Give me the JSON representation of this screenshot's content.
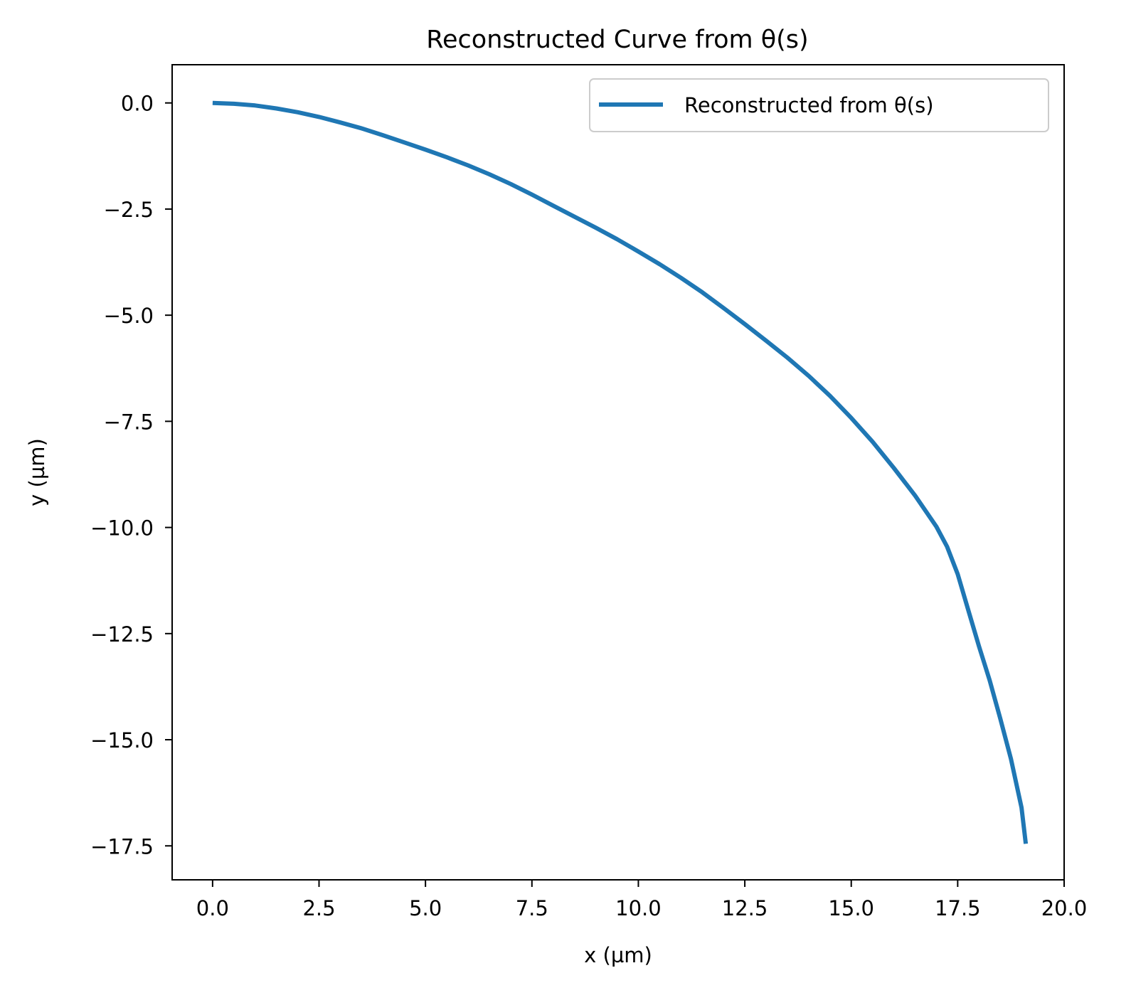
{
  "chart_data": {
    "type": "line",
    "title": "Reconstructed Curve from θ(s)",
    "xlabel": "x (µm)",
    "ylabel": "y (µm)",
    "xlim": [
      -0.95,
      20.0
    ],
    "ylim": [
      -18.3,
      0.9
    ],
    "grid": false,
    "legend_position": "upper right",
    "xticks": [
      0.0,
      2.5,
      5.0,
      7.5,
      10.0,
      12.5,
      15.0,
      17.5,
      20.0
    ],
    "xtick_labels": [
      "0.0",
      "2.5",
      "5.0",
      "7.5",
      "10.0",
      "12.5",
      "15.0",
      "17.5",
      "20.0"
    ],
    "yticks": [
      0.0,
      -2.5,
      -5.0,
      -7.5,
      -10.0,
      -12.5,
      -15.0,
      -17.5
    ],
    "ytick_labels": [
      "0.0",
      "−2.5",
      "−5.0",
      "−7.5",
      "−10.0",
      "−12.5",
      "−15.0",
      "−17.5"
    ],
    "series": [
      {
        "name": "Reconstructed from θ(s)",
        "color": "#1f77b4",
        "x": [
          0.0,
          0.5,
          1.0,
          1.5,
          2.0,
          2.5,
          3.0,
          3.5,
          4.0,
          4.5,
          5.0,
          5.5,
          6.0,
          6.5,
          7.0,
          7.5,
          8.0,
          8.5,
          9.0,
          9.5,
          10.0,
          10.5,
          11.0,
          11.5,
          12.0,
          12.5,
          13.0,
          13.5,
          14.0,
          14.5,
          15.0,
          15.5,
          16.0,
          16.5,
          17.0,
          17.25,
          17.5,
          17.75,
          18.0,
          18.25,
          18.5,
          18.75,
          19.0,
          19.1
        ],
        "y": [
          0.0,
          -0.02,
          -0.06,
          -0.13,
          -0.22,
          -0.33,
          -0.46,
          -0.6,
          -0.76,
          -0.93,
          -1.1,
          -1.28,
          -1.47,
          -1.68,
          -1.91,
          -2.16,
          -2.42,
          -2.68,
          -2.94,
          -3.21,
          -3.5,
          -3.8,
          -4.12,
          -4.46,
          -4.83,
          -5.21,
          -5.6,
          -6.0,
          -6.43,
          -6.9,
          -7.42,
          -7.98,
          -8.6,
          -9.25,
          -9.98,
          -10.45,
          -11.1,
          -11.95,
          -12.8,
          -13.6,
          -14.5,
          -15.45,
          -16.6,
          -17.45
        ]
      }
    ]
  }
}
